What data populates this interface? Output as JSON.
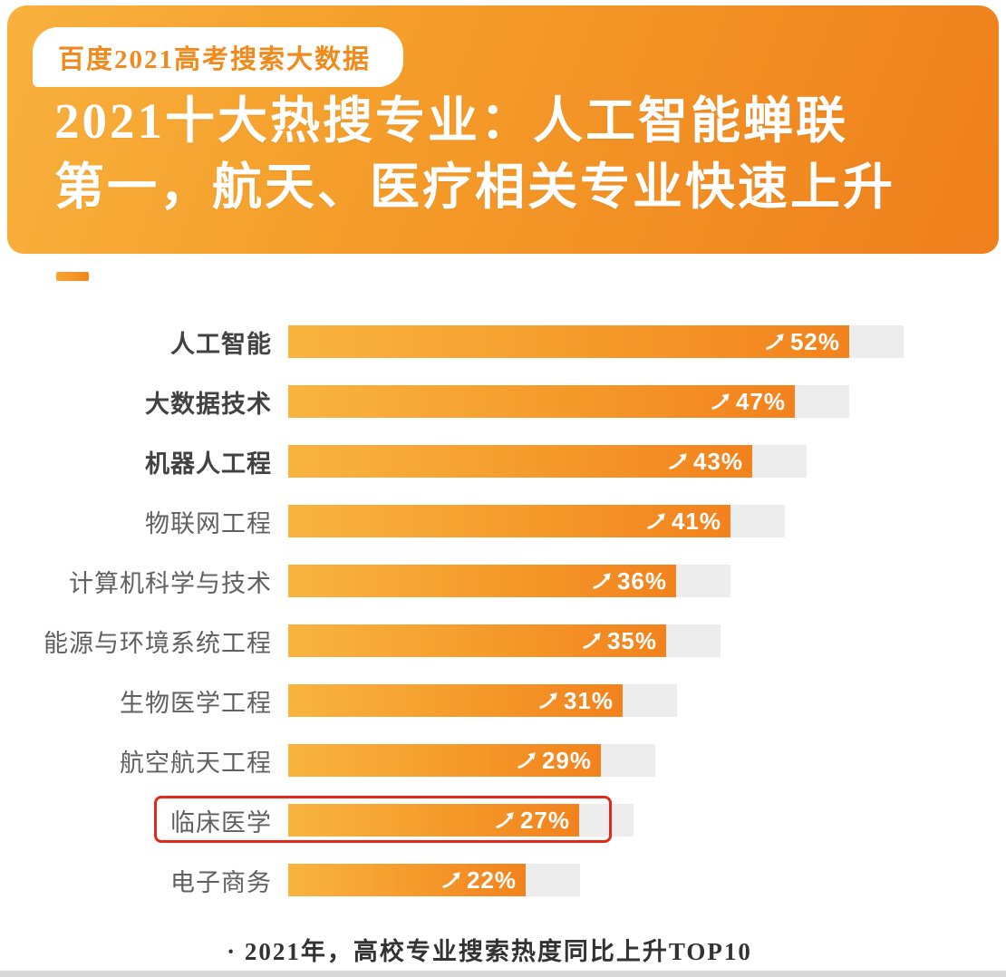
{
  "header": {
    "badge": "百度2021高考搜索大数据",
    "title_line1": "2021十大热搜专业：人工智能蝉联",
    "title_line2": "第一，航天、医疗相关专业快速上升"
  },
  "chart_data": {
    "type": "bar",
    "orientation": "horizontal",
    "title": "2021十大热搜专业：人工智能蝉联第一，航天、医疗相关专业快速上升",
    "categories": [
      "人工智能",
      "大数据技术",
      "机器人工程",
      "物联网工程",
      "计算机科学与技术",
      "能源与环境系统工程",
      "生物医学工程",
      "航空航天工程",
      "临床医学",
      "电子商务"
    ],
    "values": [
      52,
      47,
      43,
      41,
      36,
      35,
      31,
      29,
      27,
      22
    ],
    "value_suffix": "%",
    "emphasized_categories": [
      "人工智能",
      "大数据技术",
      "机器人工程"
    ],
    "highlighted_category": "临床医学",
    "xlim": [
      0,
      60
    ],
    "legend": "none",
    "grid": false,
    "footer_note": "· 2021年，高校专业搜索热度同比上升TOP10"
  },
  "colors": {
    "header_gradient_start": "#f9b13e",
    "header_gradient_end": "#ef7f1c",
    "bar_gradient_start": "#f9b440",
    "bar_gradient_end": "#f3821d",
    "track": "#ededed",
    "highlight_border": "#e02a1a",
    "badge_text": "#f18a1d",
    "value_text": "#ffffff",
    "label_text": "#606060"
  }
}
